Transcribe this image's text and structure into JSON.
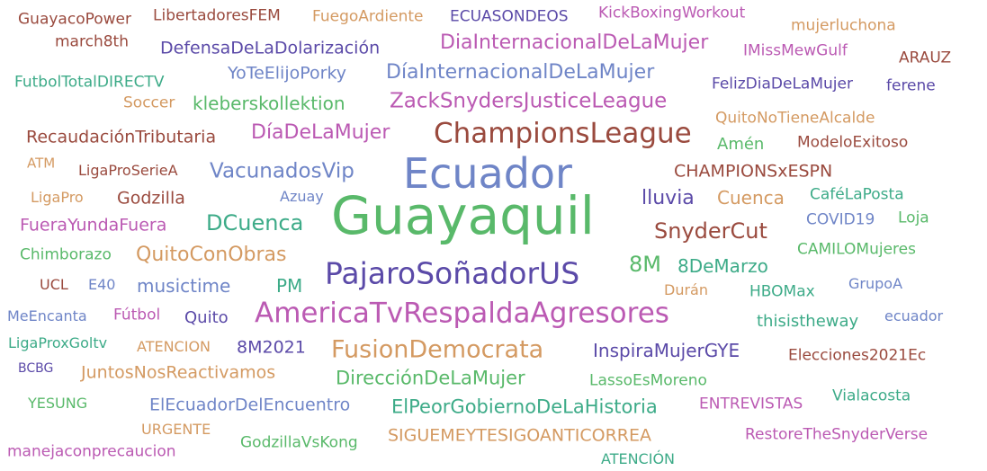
{
  "words": [
    {
      "text": "GuayacoPower",
      "color": "#9a4a3e"
    },
    {
      "text": "LibertadoresFEM",
      "color": "#9a4a3e"
    },
    {
      "text": "FuegoArdiente",
      "color": "#d49a62"
    },
    {
      "text": "ECUASONDEOS",
      "color": "#5b4aa8"
    },
    {
      "text": "KickBoxingWorkout",
      "color": "#bb5ab3"
    },
    {
      "text": "mujerluchona",
      "color": "#d49a62"
    },
    {
      "text": "march8th",
      "color": "#9a4a3e"
    },
    {
      "text": "DefensaDeLaDolarización",
      "color": "#5b4aa8"
    },
    {
      "text": "DiaInternacionalDeLaMujer",
      "color": "#bb5ab3"
    },
    {
      "text": "IMissMewGulf",
      "color": "#bb5ab3"
    },
    {
      "text": "ARAUZ",
      "color": "#9a4a3e"
    },
    {
      "text": "FutbolTotalDIRECTV",
      "color": "#3dab88"
    },
    {
      "text": "YoTeElijoPorky",
      "color": "#6f85c7"
    },
    {
      "text": "DíaInternacionalDeLaMujer",
      "color": "#6f85c7"
    },
    {
      "text": "FelizDiaDeLaMujer",
      "color": "#5b4aa8"
    },
    {
      "text": "ferene",
      "color": "#5b4aa8"
    },
    {
      "text": "Soccer",
      "color": "#d49a62"
    },
    {
      "text": "kleberskollektion",
      "color": "#59b96a"
    },
    {
      "text": "ZackSnydersJusticeLeague",
      "color": "#bb5ab3"
    },
    {
      "text": "QuitoNoTieneAlcalde",
      "color": "#d49a62"
    },
    {
      "text": "RecaudaciónTributaria",
      "color": "#9a4a3e"
    },
    {
      "text": "DíaDeLaMujer",
      "color": "#bb5ab3"
    },
    {
      "text": "ChampionsLeague",
      "color": "#9a4a3e"
    },
    {
      "text": "Amén",
      "color": "#59b96a"
    },
    {
      "text": "ModeloExitoso",
      "color": "#9a4a3e"
    },
    {
      "text": "ATM",
      "color": "#d49a62"
    },
    {
      "text": "LigaProSerieA",
      "color": "#9a4a3e"
    },
    {
      "text": "VacunadosVip",
      "color": "#6f85c7"
    },
    {
      "text": "Ecuador",
      "color": "#6f85c7"
    },
    {
      "text": "CHAMPIONSxESPN",
      "color": "#9a4a3e"
    },
    {
      "text": "LigaPro",
      "color": "#d49a62"
    },
    {
      "text": "Godzilla",
      "color": "#9a4a3e"
    },
    {
      "text": "Azuay",
      "color": "#6f85c7"
    },
    {
      "text": "lluvia",
      "color": "#5b4aa8"
    },
    {
      "text": "Cuenca",
      "color": "#d49a62"
    },
    {
      "text": "CaféLaPosta",
      "color": "#3dab88"
    },
    {
      "text": "Guayaquil",
      "color": "#59b96a"
    },
    {
      "text": "FueraYundaFuera",
      "color": "#bb5ab3"
    },
    {
      "text": "DCuenca",
      "color": "#3dab88"
    },
    {
      "text": "COVID19",
      "color": "#6f85c7"
    },
    {
      "text": "Loja",
      "color": "#59b96a"
    },
    {
      "text": "SnyderCut",
      "color": "#9a4a3e"
    },
    {
      "text": "Chimborazo",
      "color": "#59b96a"
    },
    {
      "text": "QuitoConObras",
      "color": "#d49a62"
    },
    {
      "text": "CAMILOMujeres",
      "color": "#59b96a"
    },
    {
      "text": "PajaroSoñadorUS",
      "color": "#5b4aa8"
    },
    {
      "text": "8M",
      "color": "#59b96a"
    },
    {
      "text": "8DeMarzo",
      "color": "#3dab88"
    },
    {
      "text": "UCL",
      "color": "#9a4a3e"
    },
    {
      "text": "E40",
      "color": "#6f85c7"
    },
    {
      "text": "musictime",
      "color": "#6f85c7"
    },
    {
      "text": "PM",
      "color": "#3dab88"
    },
    {
      "text": "Durán",
      "color": "#d49a62"
    },
    {
      "text": "HBOMax",
      "color": "#3dab88"
    },
    {
      "text": "GrupoA",
      "color": "#6f85c7"
    },
    {
      "text": "MeEncanta",
      "color": "#6f85c7"
    },
    {
      "text": "Fútbol",
      "color": "#bb5ab3"
    },
    {
      "text": "Quito",
      "color": "#5b4aa8"
    },
    {
      "text": "AmericaTvRespaldaAgresores",
      "color": "#bb5ab3"
    },
    {
      "text": "thisistheway",
      "color": "#3dab88"
    },
    {
      "text": "ecuador",
      "color": "#6f85c7"
    },
    {
      "text": "LigaProxGoltv",
      "color": "#3dab88"
    },
    {
      "text": "ATENCION",
      "color": "#d49a62"
    },
    {
      "text": "8M2021",
      "color": "#5b4aa8"
    },
    {
      "text": "FusionDemocrata",
      "color": "#d49a62"
    },
    {
      "text": "InspiraMujerGYE",
      "color": "#5b4aa8"
    },
    {
      "text": "Elecciones2021Ec",
      "color": "#9a4a3e"
    },
    {
      "text": "BCBG",
      "color": "#5b4aa8"
    },
    {
      "text": "JuntosNosReactivamos",
      "color": "#d49a62"
    },
    {
      "text": "DirecciónDeLaMujer",
      "color": "#59b96a"
    },
    {
      "text": "LassoEsMoreno",
      "color": "#59b96a"
    },
    {
      "text": "YESUNG",
      "color": "#59b96a"
    },
    {
      "text": "ElEcuadorDelEncuentro",
      "color": "#6f85c7"
    },
    {
      "text": "ElPeorGobiernoDeLaHistoria",
      "color": "#3dab88"
    },
    {
      "text": "ENTREVISTAS",
      "color": "#bb5ab3"
    },
    {
      "text": "Vialacosta",
      "color": "#3dab88"
    },
    {
      "text": "URGENTE",
      "color": "#d49a62"
    },
    {
      "text": "SIGUEMEYTESIGOANTICORREA",
      "color": "#d49a62"
    },
    {
      "text": "RestoreTheSnyderVerse",
      "color": "#bb5ab3"
    },
    {
      "text": "manejaconprecaucion",
      "color": "#bb5ab3"
    },
    {
      "text": "GodzillaVsKong",
      "color": "#59b96a"
    },
    {
      "text": "ATENCIÓN",
      "color": "#3dab88"
    }
  ]
}
